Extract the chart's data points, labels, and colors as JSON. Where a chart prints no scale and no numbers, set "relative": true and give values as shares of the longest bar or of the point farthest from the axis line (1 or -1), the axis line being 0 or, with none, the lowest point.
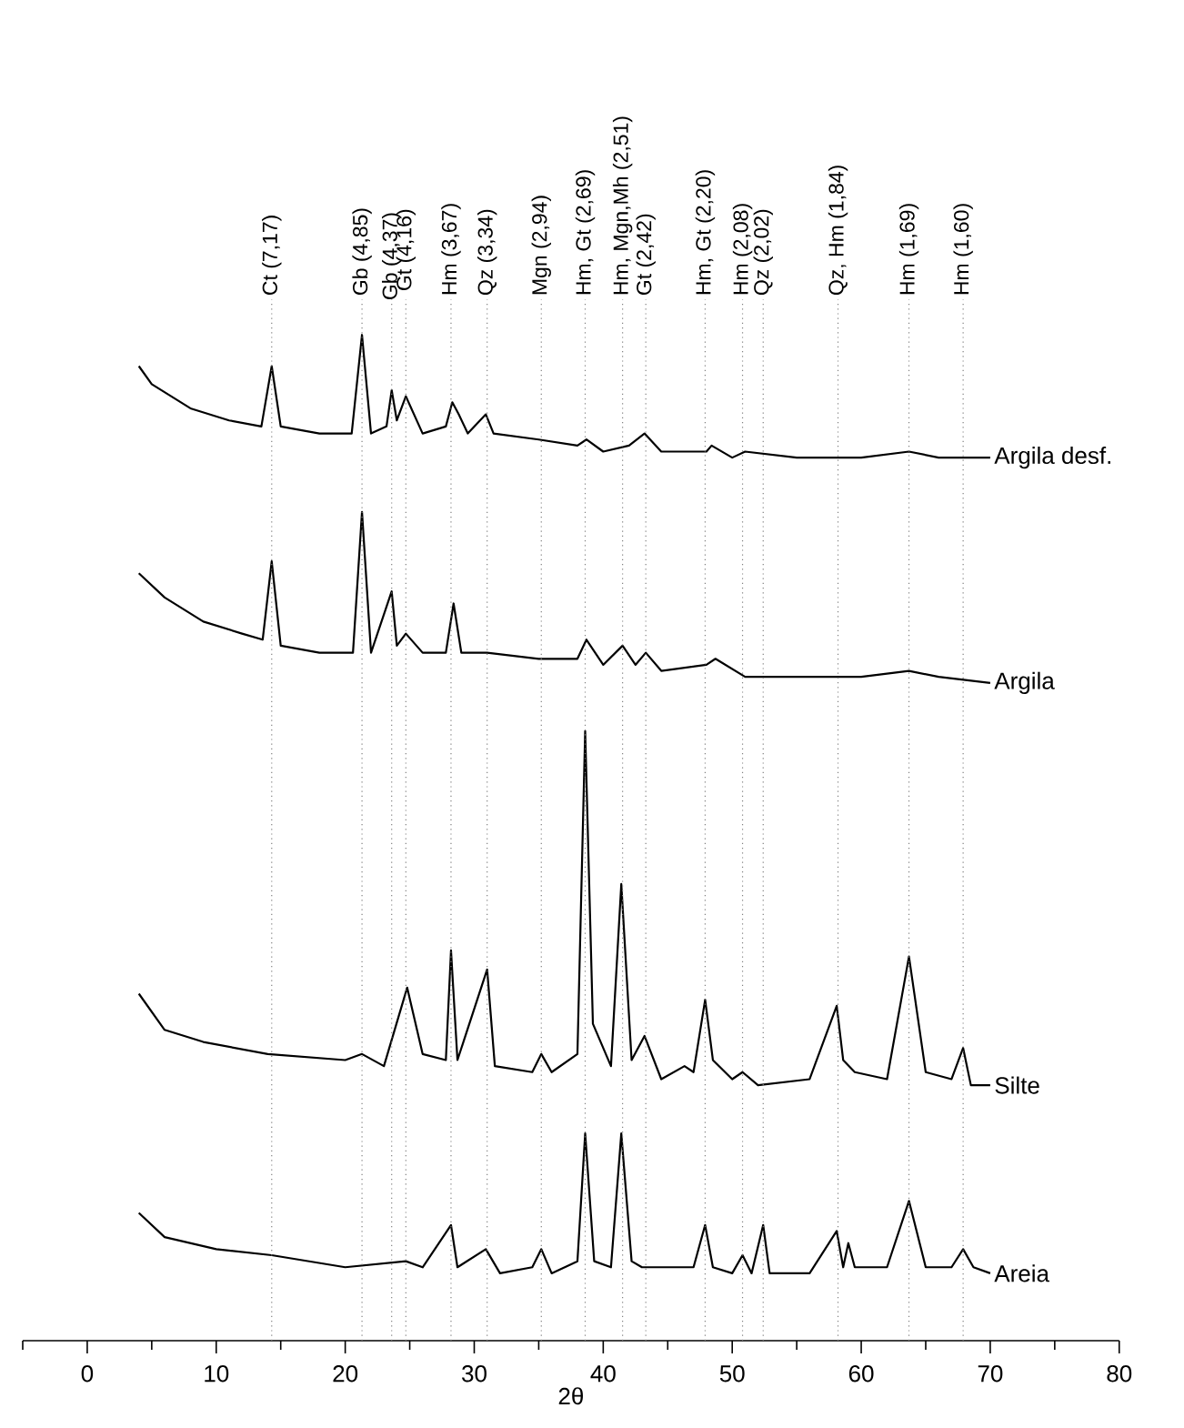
{
  "chart_data": {
    "type": "line",
    "xlabel": "2θ",
    "relative": true,
    "xlim": [
      -5,
      80
    ],
    "xticks": [
      0,
      10,
      20,
      30,
      40,
      50,
      60,
      70,
      80
    ],
    "series": [
      {
        "name": "Argila desf.",
        "color": "#000000",
        "x": [
          4,
          5,
          8,
          11,
          13.5,
          14.3,
          15,
          18,
          20.5,
          21.3,
          22,
          23.2,
          23.6,
          24,
          24.7,
          26,
          27.8,
          28.3,
          28.8,
          29.5,
          30.9,
          31.5,
          35,
          38,
          38.7,
          40,
          42,
          43.2,
          44.5,
          48,
          48.4,
          50,
          51,
          55,
          60,
          63.7,
          66,
          70
        ],
        "values": [
          0.969,
          0.951,
          0.927,
          0.915,
          0.909,
          0.969,
          0.909,
          0.902,
          0.902,
          1.0,
          0.902,
          0.909,
          0.945,
          0.915,
          0.939,
          0.902,
          0.909,
          0.933,
          0.921,
          0.902,
          0.921,
          0.902,
          0.896,
          0.89,
          0.896,
          0.884,
          0.89,
          0.902,
          0.884,
          0.884,
          0.89,
          0.878,
          0.884,
          0.878,
          0.878,
          0.884,
          0.878,
          0.878
        ]
      },
      {
        "name": "Argila",
        "color": "#000000",
        "x": [
          4,
          6,
          9,
          12,
          13.6,
          14.3,
          15,
          18,
          20.6,
          21.3,
          22,
          23.6,
          24,
          24.7,
          26,
          27.8,
          28.4,
          29,
          31,
          35,
          38,
          38.7,
          40,
          41.5,
          42.5,
          43.3,
          44.5,
          48,
          48.7,
          51,
          55,
          60,
          63.7,
          66,
          70
        ],
        "values": [
          0.763,
          0.739,
          0.715,
          0.703,
          0.697,
          0.775,
          0.691,
          0.684,
          0.684,
          0.824,
          0.684,
          0.745,
          0.691,
          0.703,
          0.684,
          0.684,
          0.733,
          0.684,
          0.684,
          0.678,
          0.678,
          0.697,
          0.672,
          0.691,
          0.672,
          0.684,
          0.666,
          0.672,
          0.678,
          0.66,
          0.66,
          0.66,
          0.666,
          0.66,
          0.654
        ]
      },
      {
        "name": "Silte",
        "color": "#000000",
        "x": [
          4,
          6,
          9,
          14,
          20,
          21.3,
          23,
          24.8,
          26,
          27.8,
          28.2,
          28.7,
          31.0,
          31.6,
          34.5,
          35.2,
          36,
          38,
          38.6,
          39.2,
          40.6,
          41.4,
          42.2,
          43.2,
          44.5,
          46.3,
          47,
          47.9,
          48.5,
          50,
          50.8,
          52,
          56,
          58.1,
          58.6,
          59.5,
          62,
          63.7,
          65,
          67,
          67.9,
          68.5,
          70
        ],
        "values": [
          0.345,
          0.309,
          0.297,
          0.285,
          0.279,
          0.285,
          0.273,
          0.351,
          0.285,
          0.279,
          0.388,
          0.279,
          0.369,
          0.273,
          0.267,
          0.285,
          0.267,
          0.285,
          0.606,
          0.315,
          0.273,
          0.454,
          0.279,
          0.303,
          0.26,
          0.273,
          0.267,
          0.339,
          0.279,
          0.26,
          0.267,
          0.254,
          0.26,
          0.333,
          0.279,
          0.267,
          0.26,
          0.382,
          0.267,
          0.26,
          0.291,
          0.254,
          0.254
        ]
      },
      {
        "name": "Areia",
        "color": "#000000",
        "x": [
          4,
          6,
          10,
          14.3,
          20,
          24.7,
          26,
          28.2,
          28.7,
          30.9,
          32,
          34.5,
          35.2,
          36,
          38,
          38.6,
          39.3,
          40.6,
          41.4,
          42.2,
          43,
          44.5,
          47,
          47.9,
          48.5,
          50,
          50.8,
          51.5,
          52.4,
          52.9,
          56,
          58.1,
          58.6,
          59.0,
          59.5,
          62,
          63.7,
          65,
          67,
          67.9,
          68.7,
          70
        ],
        "values": [
          0.127,
          0.103,
          0.091,
          0.085,
          0.073,
          0.079,
          0.073,
          0.115,
          0.073,
          0.091,
          0.067,
          0.073,
          0.091,
          0.067,
          0.079,
          0.206,
          0.079,
          0.073,
          0.206,
          0.079,
          0.073,
          0.073,
          0.073,
          0.115,
          0.073,
          0.067,
          0.085,
          0.067,
          0.115,
          0.067,
          0.067,
          0.109,
          0.073,
          0.097,
          0.073,
          0.073,
          0.139,
          0.073,
          0.073,
          0.091,
          0.073,
          0.067
        ]
      }
    ],
    "ref_lines": [
      {
        "axis": "x",
        "value": 14.3,
        "label": "Ct (7,17)",
        "color": "#808080",
        "line_style": "dotted"
      },
      {
        "axis": "x",
        "value": 21.3,
        "label": "Gb (4,85)",
        "color": "#808080",
        "line_style": "dotted"
      },
      {
        "axis": "x",
        "value": 23.6,
        "label": "Gb (4,37)",
        "color": "#808080",
        "line_style": "dotted"
      },
      {
        "axis": "x",
        "value": 24.7,
        "label": "Gt (4,16)",
        "color": "#808080",
        "line_style": "dotted"
      },
      {
        "axis": "x",
        "value": 28.2,
        "label": "Hm (3,67)",
        "color": "#808080",
        "line_style": "dotted"
      },
      {
        "axis": "x",
        "value": 31.0,
        "label": "Qz (3,34)",
        "color": "#808080",
        "line_style": "dotted"
      },
      {
        "axis": "x",
        "value": 35.2,
        "label": "Mgn (2,94)",
        "color": "#808080",
        "line_style": "dotted"
      },
      {
        "axis": "x",
        "value": 38.6,
        "label": "Hm, Gt (2,69)",
        "color": "#808080",
        "line_style": "dotted"
      },
      {
        "axis": "x",
        "value": 41.5,
        "label": "Hm, Mgn,Mh (2,51)",
        "color": "#808080",
        "line_style": "dotted"
      },
      {
        "axis": "x",
        "value": 43.3,
        "label": "Gt (2,42)",
        "color": "#808080",
        "line_style": "dotted"
      },
      {
        "axis": "x",
        "value": 47.9,
        "label": "Hm, Gt (2,20)",
        "color": "#808080",
        "line_style": "dotted"
      },
      {
        "axis": "x",
        "value": 50.8,
        "label": "Hm (2,08)",
        "color": "#808080",
        "line_style": "dotted"
      },
      {
        "axis": "x",
        "value": 52.4,
        "label": "Qz (2,02)",
        "color": "#808080",
        "line_style": "dotted"
      },
      {
        "axis": "x",
        "value": 58.2,
        "label": "Qz, Hm (1,84)",
        "color": "#808080",
        "line_style": "dotted"
      },
      {
        "axis": "x",
        "value": 63.7,
        "label": "Hm (1,69)",
        "color": "#808080",
        "line_style": "dotted"
      },
      {
        "axis": "x",
        "value": 67.9,
        "label": "Hm (1,60)",
        "color": "#808080",
        "line_style": "dotted"
      }
    ]
  }
}
